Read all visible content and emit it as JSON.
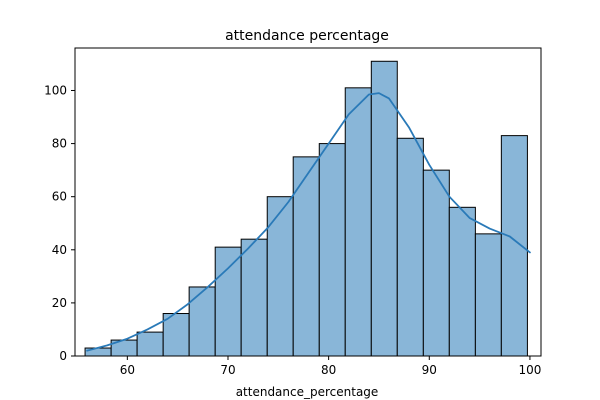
{
  "chart_data": {
    "type": "bar",
    "title": "attendance percentage",
    "xlabel": "attendance_percentage",
    "ylabel": "",
    "xlim": [
      54.8,
      101.1
    ],
    "ylim": [
      0,
      116
    ],
    "xticks": [
      60,
      70,
      80,
      90,
      100
    ],
    "yticks": [
      0,
      20,
      40,
      60,
      80,
      100
    ],
    "bin_edges": [
      55.8,
      58.39,
      60.97,
      63.56,
      66.14,
      68.73,
      71.31,
      73.9,
      76.48,
      79.07,
      81.65,
      84.24,
      86.82,
      89.41,
      91.99,
      94.58,
      97.16,
      99.75
    ],
    "values": [
      3,
      6,
      9,
      16,
      26,
      41,
      44,
      60,
      75,
      80,
      101,
      111,
      82,
      70,
      56,
      46,
      83
    ],
    "kde": {
      "x": [
        56,
        58,
        60,
        62,
        64,
        66,
        68,
        70,
        72,
        74,
        76,
        78,
        80,
        82,
        84,
        85,
        86,
        88,
        90,
        92,
        94,
        96,
        98,
        100
      ],
      "y": [
        2,
        4,
        6.5,
        10,
        14,
        19.5,
        26,
        33,
        40.5,
        48.5,
        58,
        69,
        80,
        91,
        98.5,
        99,
        97,
        86,
        72,
        60,
        52,
        48,
        45,
        39
      ]
    },
    "colors": {
      "bar_fill": "#89b6d8",
      "bar_edge": "#000000",
      "kde_line": "#2a7ab8"
    }
  }
}
